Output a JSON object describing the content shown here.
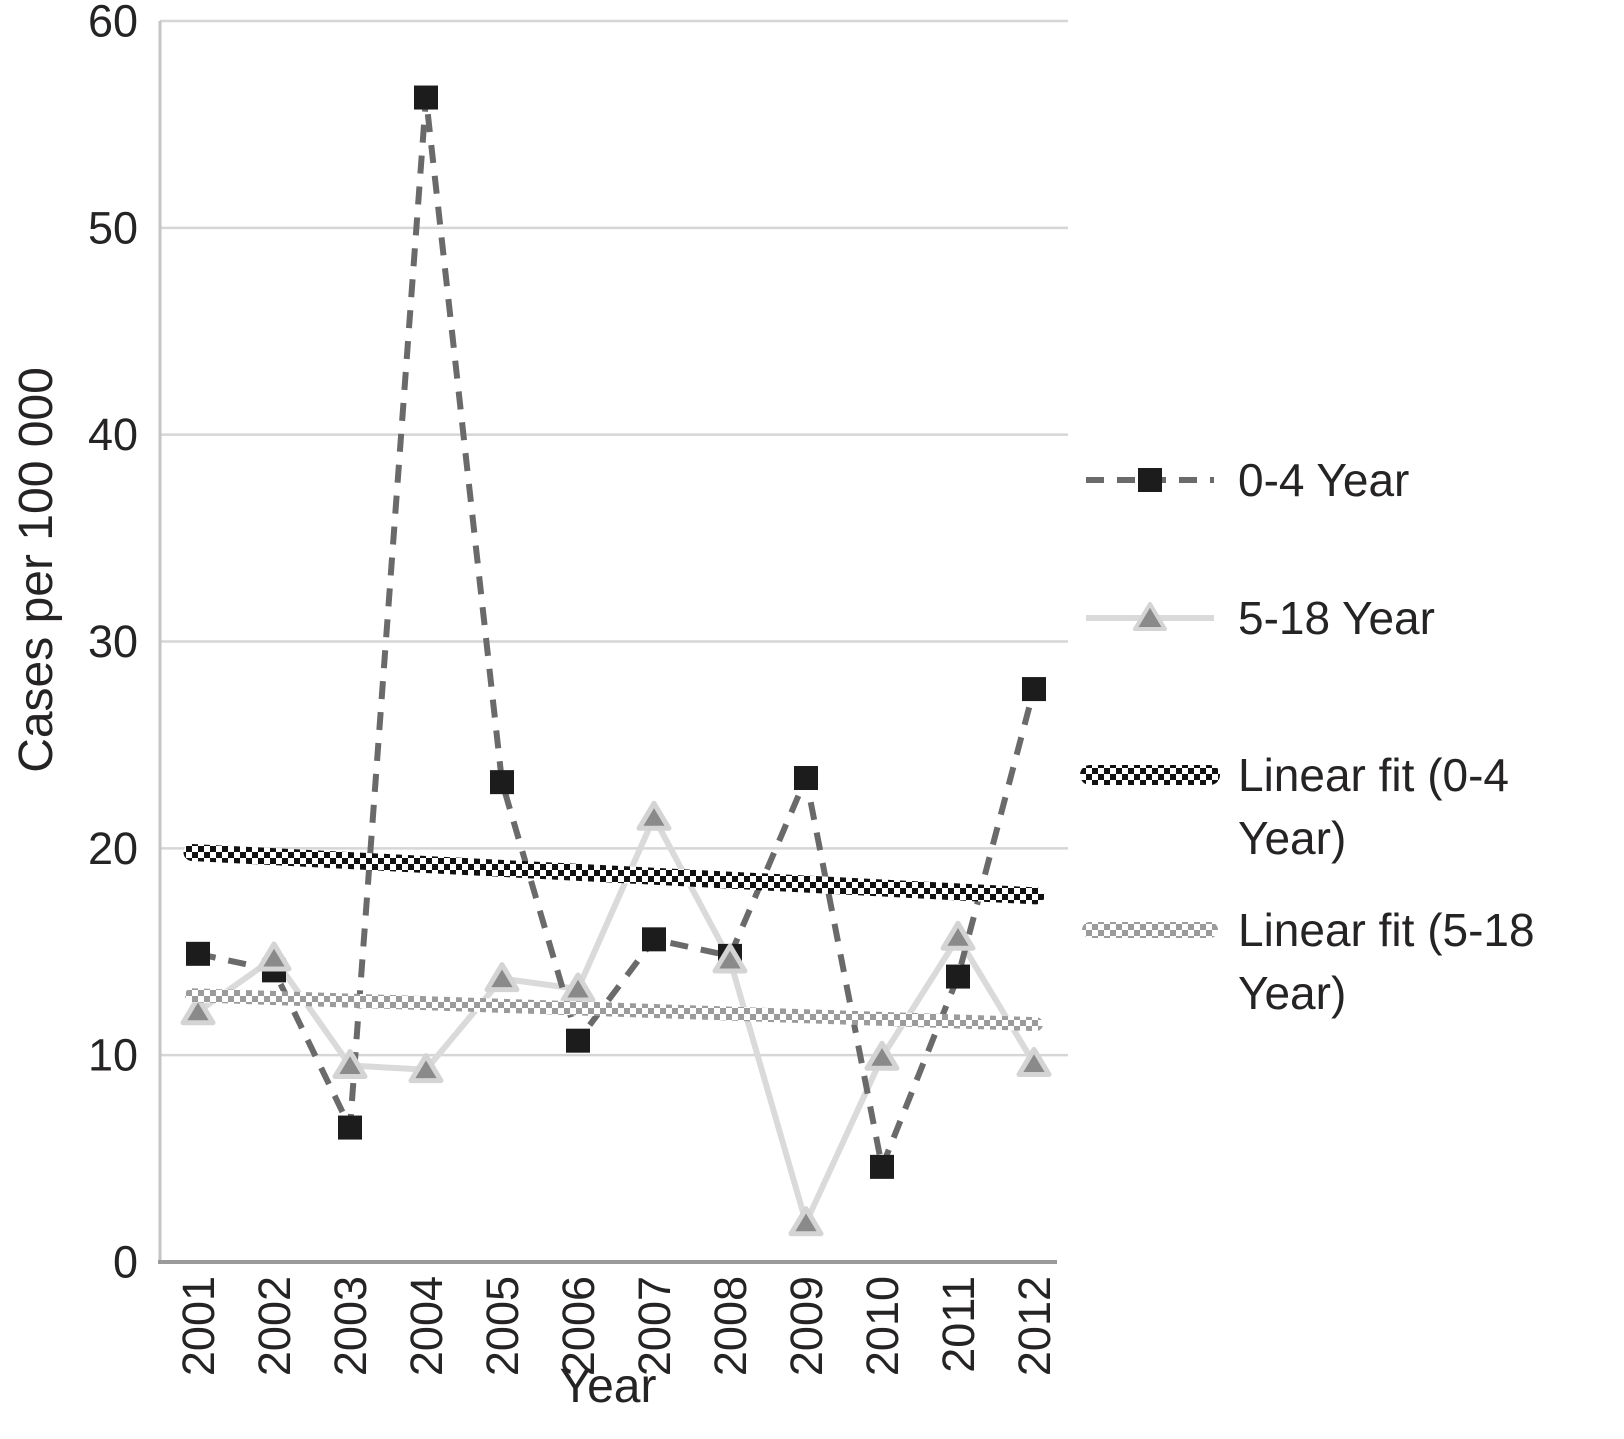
{
  "page": {
    "background": "#ffffff",
    "text_color": "#262324"
  },
  "chart_data": {
    "type": "line",
    "title": "",
    "xlabel": "Year",
    "ylabel": "Cases per 100 000",
    "categories": [
      2001,
      2002,
      2003,
      2004,
      2005,
      2006,
      2007,
      2008,
      2009,
      2010,
      2011,
      2012
    ],
    "ylim": [
      0,
      60
    ],
    "yticks": [
      0,
      10,
      20,
      30,
      40,
      50,
      60
    ],
    "grid": "horizontal",
    "legend_position": "right",
    "series": [
      {
        "name": "0-4 Year",
        "line_style": "dashed",
        "line_color": "#6a6a6a",
        "marker": "square",
        "marker_color": "#1c1c1c",
        "values": [
          14.9,
          14.1,
          6.5,
          56.3,
          23.2,
          10.7,
          15.6,
          14.8,
          23.4,
          4.6,
          13.8,
          27.7
        ]
      },
      {
        "name": "5-18 Year",
        "line_style": "solid",
        "line_color": "#dadada",
        "marker": "triangle",
        "marker_color": "#8a8a8a",
        "marker_edge_color": "#d4d4d4",
        "values": [
          12.1,
          14.7,
          9.5,
          9.3,
          13.7,
          13.2,
          21.5,
          14.6,
          1.9,
          9.9,
          15.7,
          9.6
        ]
      }
    ],
    "fits": [
      {
        "name": "Linear fit (0-4 Year)",
        "pattern": "checker-black",
        "color": "#111111",
        "start_value": 19.8,
        "end_value": 17.7
      },
      {
        "name": "Linear fit (5-18 Year)",
        "pattern": "checker-gray",
        "color": "#9b9b9b",
        "start_value": 12.9,
        "end_value": 11.5
      }
    ],
    "legend": {
      "entries": [
        {
          "label_lines": [
            "0-4 Year"
          ],
          "sample": "dashed-square"
        },
        {
          "label_lines": [
            "5-18 Year"
          ],
          "sample": "solid-triangle"
        },
        {
          "label_lines": [
            "Linear fit (0-4",
            "Year)"
          ],
          "sample": "checker-black"
        },
        {
          "label_lines": [
            "Linear fit (5-18",
            "Year)"
          ],
          "sample": "checker-gray"
        }
      ]
    }
  }
}
